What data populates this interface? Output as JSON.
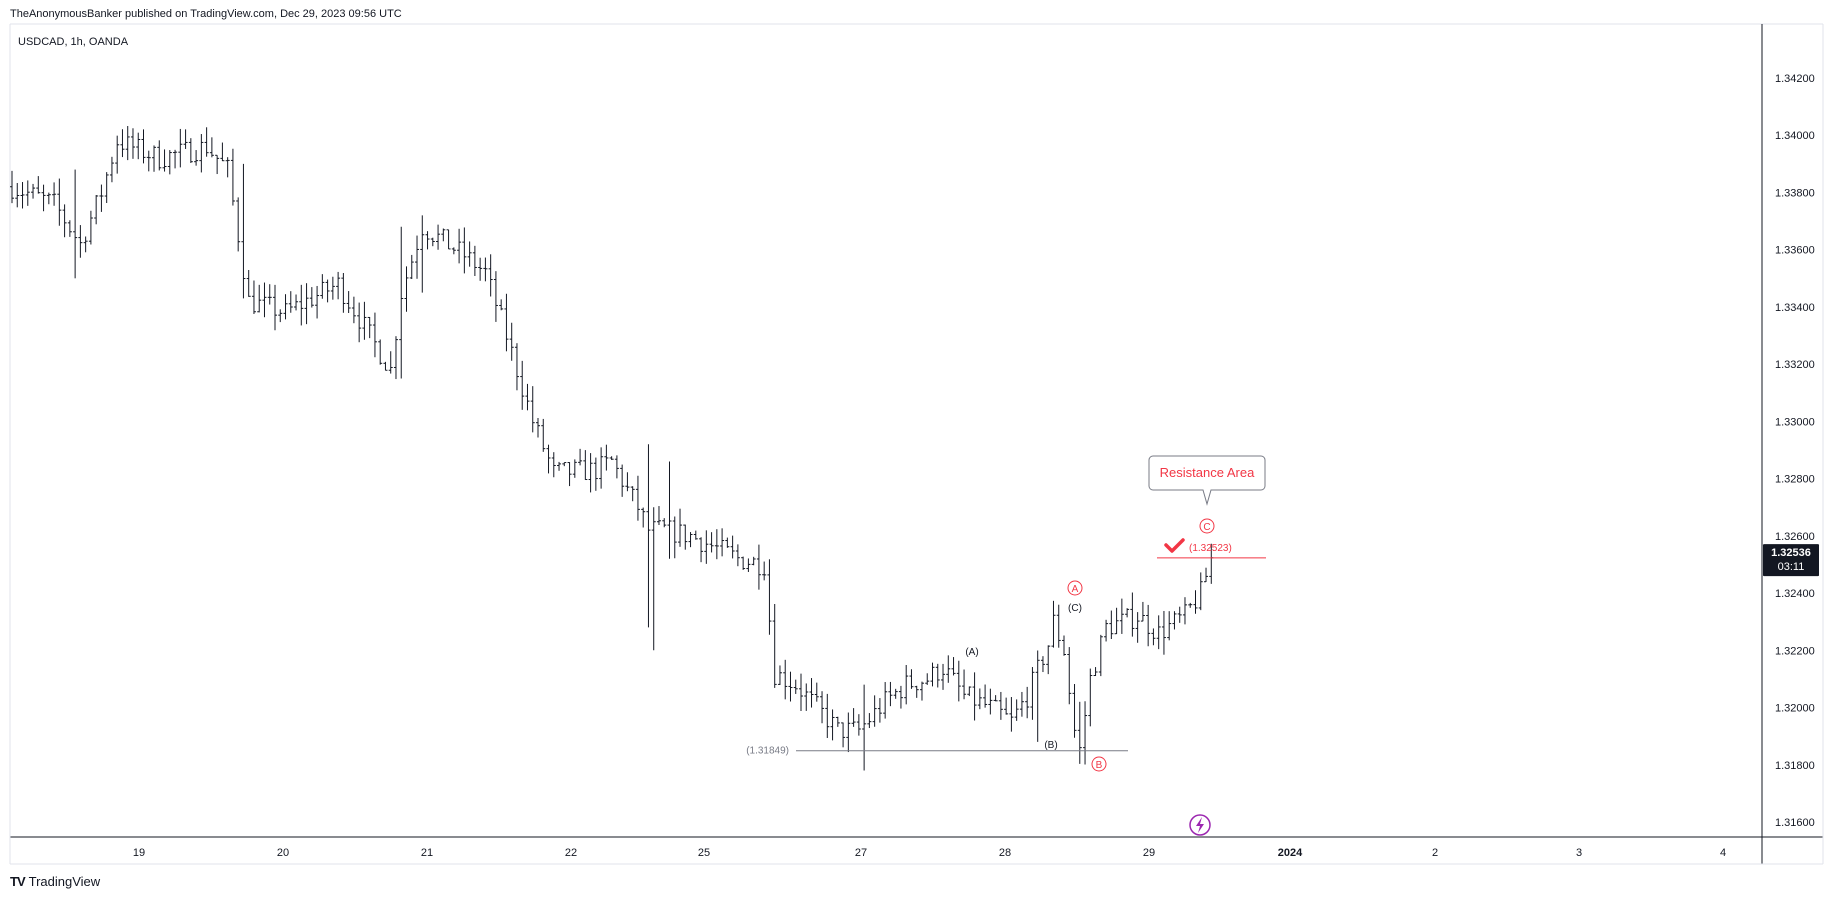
{
  "header": {
    "publisher": "TheAnonymousBanker published on TradingView.com, Dec 29, 2023 09:56 UTC"
  },
  "symbol_info": "USDCAD, 1h, OANDA",
  "footer": {
    "brand": "TradingView",
    "logo": "TV"
  },
  "colors": {
    "bar": "#131722",
    "red": "#f23645",
    "grey": "#787b86",
    "price_badge": "#131722",
    "purple": "#9c27b0"
  },
  "chart_data": {
    "type": "ohlc",
    "title": "",
    "ylim": [
      1.315,
      1.344
    ],
    "y_ticks": [
      "1.34200",
      "1.34000",
      "1.33800",
      "1.33600",
      "1.33400",
      "1.33200",
      "1.33000",
      "1.32800",
      "1.32600",
      "1.32400",
      "1.32200",
      "1.32000",
      "1.31800",
      "1.31600"
    ],
    "x_ticks": [
      "19",
      "20",
      "21",
      "22",
      "25",
      "27",
      "28",
      "29",
      "2024",
      "2",
      "3",
      "4"
    ],
    "bar_count": 210,
    "close_path": [
      [
        0,
        1.3382
      ],
      [
        8,
        1.3376
      ],
      [
        13,
        1.3362
      ],
      [
        17,
        1.338
      ],
      [
        20,
        1.3398
      ],
      [
        28,
        1.3392
      ],
      [
        37,
        1.3396
      ],
      [
        41,
        1.3388
      ],
      [
        45,
        1.3342
      ],
      [
        52,
        1.3338
      ],
      [
        62,
        1.3348
      ],
      [
        68,
        1.333
      ],
      [
        72,
        1.3318
      ],
      [
        74,
        1.3345
      ],
      [
        78,
        1.3368
      ],
      [
        86,
        1.3358
      ],
      [
        90,
        1.3352
      ],
      [
        94,
        1.333
      ],
      [
        99,
        1.33
      ],
      [
        103,
        1.3282
      ],
      [
        111,
        1.3283
      ],
      [
        114,
        1.3286
      ],
      [
        117,
        1.3276
      ],
      [
        119,
        1.327
      ],
      [
        121,
        1.3262
      ],
      [
        124,
        1.3262
      ],
      [
        129,
        1.326
      ],
      [
        138,
        1.3252
      ],
      [
        143,
        1.325
      ],
      [
        145,
        1.3212
      ],
      [
        149,
        1.3208
      ],
      [
        153,
        1.32
      ],
      [
        157,
        1.3192
      ],
      [
        161,
        1.3192
      ],
      [
        166,
        1.3202
      ],
      [
        170,
        1.3208
      ],
      [
        174,
        1.321
      ],
      [
        177,
        1.3214
      ],
      [
        181,
        1.3204
      ],
      [
        186,
        1.32
      ],
      [
        190,
        1.3195
      ],
      [
        193,
        1.3204
      ],
      [
        197,
        1.3222
      ],
      [
        198,
        1.323
      ],
      [
        200,
        1.322
      ],
      [
        202,
        1.3192
      ],
      [
        203,
        1.3185
      ],
      [
        205,
        1.321
      ],
      [
        208,
        1.3228
      ],
      [
        214,
        1.3232
      ],
      [
        218,
        1.3226
      ],
      [
        223,
        1.3232
      ],
      [
        226,
        1.324
      ],
      [
        228,
        1.3252
      ]
    ],
    "spikes": [
      {
        "i": 12,
        "high": 1.3388,
        "low": 1.335
      },
      {
        "i": 44,
        "high": 1.339,
        "low": 1.3343
      },
      {
        "i": 74,
        "high": 1.3368,
        "low": 1.3315
      },
      {
        "i": 78,
        "high": 1.3372,
        "low": 1.3345
      },
      {
        "i": 121,
        "high": 1.3292,
        "low": 1.3228
      },
      {
        "i": 122,
        "high": 1.327,
        "low": 1.322
      },
      {
        "i": 125,
        "high": 1.3286,
        "low": 1.3252
      },
      {
        "i": 162,
        "high": 1.3208,
        "low": 1.3178
      },
      {
        "i": 195,
        "high": 1.321,
        "low": 1.3188
      },
      {
        "i": 203,
        "high": 1.3202,
        "low": 1.3182
      }
    ],
    "current_price": "1.32536",
    "countdown": "03:11",
    "support_level": "(1.31849)",
    "resistance_level": "(1.32523)",
    "callout": "Resistance Area",
    "wave_labels_black": [
      "(A)",
      "(B)",
      "(C)"
    ],
    "wave_labels_red": [
      "A",
      "B",
      "C"
    ]
  }
}
